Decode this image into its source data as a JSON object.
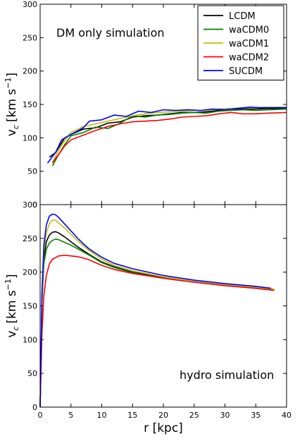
{
  "chart_data": [
    {
      "type": "line",
      "panel": "top",
      "annotation": "DM only simulation",
      "xlabel": "",
      "ylabel_main": "v",
      "ylabel_sub": "c",
      "ylabel_units": "[km s",
      "ylabel_exp": "−1",
      "ylabel_close": "]",
      "xlim": [
        0,
        40
      ],
      "ylim": [
        0,
        300
      ],
      "yticks": [
        "0",
        "50",
        "100",
        "150",
        "200",
        "250",
        "300"
      ],
      "legend_location": "top-right",
      "series": [
        {
          "name": "LCDM",
          "color": "#000000",
          "points": [
            [
              1.5,
              71
            ],
            [
              2.5,
              78
            ],
            [
              4,
              100
            ],
            [
              5,
              105
            ],
            [
              7,
              113
            ],
            [
              9,
              115
            ],
            [
              11,
              122
            ],
            [
              13,
              124
            ],
            [
              15,
              131
            ],
            [
              17,
              133
            ],
            [
              19,
              134
            ],
            [
              21,
              136
            ],
            [
              23,
              138
            ],
            [
              25,
              138
            ],
            [
              27,
              139
            ],
            [
              29,
              141
            ],
            [
              31,
              143
            ],
            [
              33,
              143
            ],
            [
              35,
              143
            ],
            [
              37,
              144
            ],
            [
              40,
              143
            ]
          ]
        },
        {
          "name": "waCDM0",
          "color": "#008000",
          "points": [
            [
              2,
              58
            ],
            [
              3,
              75
            ],
            [
              4,
              90
            ],
            [
              5,
              103
            ],
            [
              7,
              108
            ],
            [
              9,
              116
            ],
            [
              11,
              114
            ],
            [
              13,
              122
            ],
            [
              15,
              133
            ],
            [
              17,
              131
            ],
            [
              19,
              134
            ],
            [
              21,
              135
            ],
            [
              23,
              137
            ],
            [
              25,
              138
            ],
            [
              27,
              137
            ],
            [
              29,
              140
            ],
            [
              31,
              141
            ],
            [
              33,
              142
            ],
            [
              35,
              141
            ],
            [
              37,
              142
            ],
            [
              40,
              143
            ]
          ]
        },
        {
          "name": "waCDM1",
          "color": "#bfbf00",
          "points": [
            [
              2,
              62
            ],
            [
              3,
              82
            ],
            [
              4,
              96
            ],
            [
              5,
              108
            ],
            [
              7,
              117
            ],
            [
              9,
              121
            ],
            [
              11,
              125
            ],
            [
              13,
              129
            ],
            [
              15,
              133
            ],
            [
              17,
              136
            ],
            [
              19,
              138
            ],
            [
              21,
              139
            ],
            [
              23,
              140
            ],
            [
              25,
              141
            ],
            [
              27,
              141
            ],
            [
              29,
              143
            ],
            [
              31,
              144
            ],
            [
              33,
              145
            ],
            [
              35,
              145
            ],
            [
              37,
              146
            ],
            [
              40,
              146
            ]
          ]
        },
        {
          "name": "waCDM2",
          "color": "#ff0000",
          "points": [
            [
              2,
              63
            ],
            [
              3,
              75
            ],
            [
              4,
              88
            ],
            [
              5,
              97
            ],
            [
              7,
              104
            ],
            [
              9,
              111
            ],
            [
              11,
              117
            ],
            [
              13,
              121
            ],
            [
              15,
              124
            ],
            [
              17,
              125
            ],
            [
              19,
              126
            ],
            [
              21,
              128
            ],
            [
              23,
              131
            ],
            [
              25,
              132
            ],
            [
              27,
              133
            ],
            [
              29,
              136
            ],
            [
              31,
              138
            ],
            [
              33,
              136
            ],
            [
              35,
              136
            ],
            [
              37,
              137
            ],
            [
              40,
              138
            ]
          ]
        },
        {
          "name": "SUCDM",
          "color": "#0000ff",
          "points": [
            [
              1.2,
              62
            ],
            [
              2.5,
              78
            ],
            [
              3.5,
              97
            ],
            [
              5,
              105
            ],
            [
              7,
              115
            ],
            [
              8,
              125
            ],
            [
              10,
              127
            ],
            [
              12,
              134
            ],
            [
              14,
              132
            ],
            [
              16,
              140
            ],
            [
              18,
              138
            ],
            [
              20,
              142
            ],
            [
              22,
              141
            ],
            [
              24,
              142
            ],
            [
              26,
              141
            ],
            [
              28,
              143
            ],
            [
              30,
              142
            ],
            [
              32,
              144
            ],
            [
              34,
              146
            ],
            [
              36,
              145
            ],
            [
              40,
              145
            ]
          ]
        }
      ]
    },
    {
      "type": "line",
      "panel": "bottom",
      "annotation": "hydro simulation",
      "xlabel": "r [kpc]",
      "ylabel_main": "v",
      "ylabel_sub": "c",
      "ylabel_units": "[km s",
      "ylabel_exp": "−1",
      "ylabel_close": "]",
      "xlim": [
        0,
        40
      ],
      "ylim": [
        0,
        300
      ],
      "xticks": [
        "0",
        "5",
        "10",
        "15",
        "20",
        "25",
        "30",
        "35",
        "40"
      ],
      "yticks": [
        "0",
        "50",
        "100",
        "150",
        "200",
        "250",
        "300"
      ],
      "series": [
        {
          "name": "LCDM",
          "color": "#000000",
          "points": [
            [
              0,
              0
            ],
            [
              0.3,
              160
            ],
            [
              0.6,
              220
            ],
            [
              1,
              245
            ],
            [
              1.5,
              255
            ],
            [
              2,
              259
            ],
            [
              2.5,
              260
            ],
            [
              3,
              258
            ],
            [
              4,
              252
            ],
            [
              5,
              245
            ],
            [
              6,
              238
            ],
            [
              7,
              232
            ],
            [
              8,
              226
            ],
            [
              10,
              215
            ],
            [
              12,
              208
            ],
            [
              15,
              200
            ],
            [
              20,
              192
            ],
            [
              25,
              186
            ],
            [
              30,
              181
            ],
            [
              35,
              177
            ],
            [
              38,
              173
            ]
          ]
        },
        {
          "name": "waCDM0",
          "color": "#008000",
          "points": [
            [
              0,
              0
            ],
            [
              0.3,
              155
            ],
            [
              0.6,
              212
            ],
            [
              1,
              234
            ],
            [
              1.5,
              243
            ],
            [
              2,
              247
            ],
            [
              2.5,
              249
            ],
            [
              3,
              248
            ],
            [
              4,
              244
            ],
            [
              5,
              240
            ],
            [
              6,
              235
            ],
            [
              7,
              230
            ],
            [
              8,
              225
            ],
            [
              10,
              214
            ],
            [
              12,
              207
            ],
            [
              15,
              199
            ],
            [
              20,
              191
            ],
            [
              25,
              185
            ],
            [
              30,
              180
            ],
            [
              35,
              176
            ],
            [
              38,
              173
            ]
          ]
        },
        {
          "name": "waCDM1",
          "color": "#bfbf00",
          "points": [
            [
              0,
              0
            ],
            [
              0.3,
              165
            ],
            [
              0.6,
              230
            ],
            [
              1,
              258
            ],
            [
              1.5,
              272
            ],
            [
              2,
              277
            ],
            [
              2.5,
              277
            ],
            [
              3,
              273
            ],
            [
              4,
              265
            ],
            [
              5,
              256
            ],
            [
              6,
              247
            ],
            [
              7,
              239
            ],
            [
              8,
              232
            ],
            [
              10,
              219
            ],
            [
              12,
              210
            ],
            [
              15,
              202
            ],
            [
              20,
              193
            ],
            [
              25,
              186
            ],
            [
              30,
              181
            ],
            [
              35,
              177
            ],
            [
              38,
              175
            ]
          ]
        },
        {
          "name": "waCDM2",
          "color": "#ff0000",
          "points": [
            [
              0,
              0
            ],
            [
              0.3,
              110
            ],
            [
              0.6,
              165
            ],
            [
              1,
              195
            ],
            [
              1.5,
              212
            ],
            [
              2,
              219
            ],
            [
              3,
              224
            ],
            [
              4,
              225
            ],
            [
              5,
              224
            ],
            [
              6,
              223
            ],
            [
              7,
              221
            ],
            [
              8,
              218
            ],
            [
              10,
              210
            ],
            [
              12,
              204
            ],
            [
              15,
              198
            ],
            [
              20,
              191
            ],
            [
              25,
              185
            ],
            [
              30,
              180
            ],
            [
              35,
              176
            ],
            [
              38,
              173
            ]
          ]
        },
        {
          "name": "SUCDM",
          "color": "#0000ff",
          "points": [
            [
              0,
              0
            ],
            [
              0.3,
              170
            ],
            [
              0.6,
              240
            ],
            [
              1,
              270
            ],
            [
              1.5,
              283
            ],
            [
              2,
              286
            ],
            [
              2.5,
              285
            ],
            [
              3,
              281
            ],
            [
              4,
              271
            ],
            [
              5,
              261
            ],
            [
              6,
              251
            ],
            [
              7,
              242
            ],
            [
              8,
              234
            ],
            [
              10,
              222
            ],
            [
              12,
              213
            ],
            [
              15,
              205
            ],
            [
              20,
              195
            ],
            [
              25,
              188
            ],
            [
              30,
              183
            ],
            [
              35,
              179
            ],
            [
              37.5,
              176
            ]
          ]
        }
      ]
    }
  ]
}
